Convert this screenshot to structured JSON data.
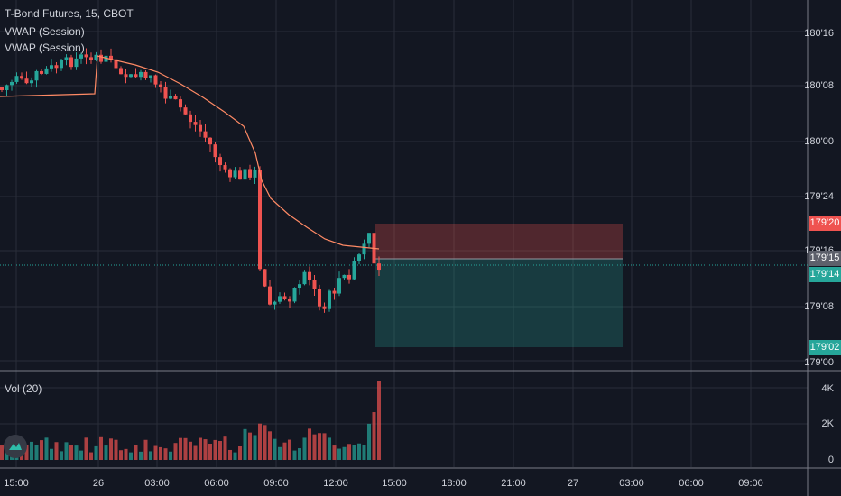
{
  "header": {
    "symbol_title": "T-Bond Futures, 15, CBOT",
    "indicator_1": "VWAP (Session)",
    "indicator_2": "VWAP (Session)"
  },
  "volume_pane": {
    "title": "Vol (20)",
    "ticks": [
      "4K",
      "2K",
      "0"
    ]
  },
  "price_axis": {
    "ticks": [
      "180'16",
      "180'08",
      "180'00",
      "179'24",
      "179'16",
      "179'08",
      "179'00"
    ],
    "badges": {
      "stop": "179'20",
      "current": "179'15",
      "entry": "179'14",
      "target": "179'02"
    }
  },
  "time_axis": {
    "ticks": [
      "15:00",
      "26",
      "03:00",
      "06:00",
      "09:00",
      "12:00",
      "15:00",
      "18:00",
      "21:00",
      "27",
      "03:00",
      "06:00",
      "09:00"
    ]
  },
  "colors": {
    "background": "#131722",
    "up": "#26a69a",
    "down": "#ef5350",
    "vwap": "#ff8a65",
    "grid": "#2a2e39"
  },
  "icons": {
    "logo": "tradingview-logo-icon"
  }
}
